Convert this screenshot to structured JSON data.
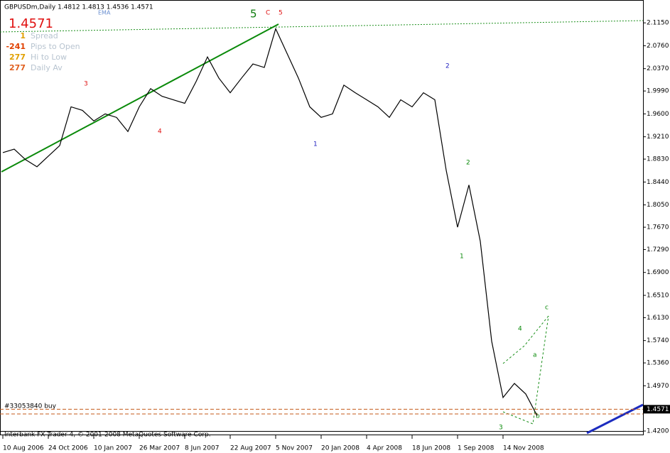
{
  "chart_data": {
    "type": "line",
    "header": "GBPUSDm,Daily  1.4812 1.4813 1.4536 1.4571",
    "indicator": "EMA",
    "current_price": 1.4571,
    "info_panel": [
      {
        "value": 1,
        "label": "Spread"
      },
      {
        "value": -241,
        "label": "Pips to Open"
      },
      {
        "value": 277,
        "label": "Hi to Low"
      },
      {
        "value": 277,
        "label": "Daily Av"
      }
    ],
    "order_label": "#33053840 buy",
    "copyright": "Interbank FX Trader 4, © 2001-2008 MetaQuotes Software Corp.",
    "annotations": [
      "5",
      "C",
      "5",
      "3",
      "4",
      "1",
      "2",
      "2",
      "1",
      "3",
      "4",
      "a",
      "b",
      "c"
    ],
    "categories": [
      "10 Aug 2006",
      null,
      null,
      null,
      "24 Oct 2006",
      null,
      null,
      null,
      "10 Jan 2007",
      null,
      null,
      null,
      "26 Mar 2007",
      null,
      null,
      null,
      "8 Jun 2007",
      null,
      null,
      null,
      "22 Aug 2007",
      null,
      null,
      null,
      "5 Nov 2007",
      null,
      null,
      null,
      "20 Jan 2008",
      null,
      null,
      null,
      "4 Apr 2008",
      null,
      null,
      null,
      "18 Jun 2008",
      null,
      null,
      null,
      "1 Sep 2008",
      null,
      null,
      null,
      "14 Nov 2008",
      null,
      null,
      null
    ],
    "series": [
      {
        "name": "GBPUSDm",
        "color": "#000000",
        "values": [
          1.894,
          1.9,
          1.882,
          1.87,
          1.888,
          1.906,
          1.972,
          1.966,
          1.948,
          1.96,
          1.954,
          1.93,
          1.972,
          2.003,
          1.99,
          1.984,
          1.978,
          2.015,
          2.057,
          2.021,
          1.996,
          2.021,
          2.045,
          2.039,
          2.105,
          2.063,
          2.021,
          1.972,
          1.954,
          1.96,
          2.009,
          1.996,
          1.984,
          1.972,
          1.954,
          1.984,
          1.972,
          1.996,
          1.984,
          1.864,
          1.767,
          1.839,
          1.743,
          1.573,
          1.477,
          1.501,
          1.483,
          1.446
        ]
      }
    ],
    "ylim": [
      1.414,
      2.137
    ],
    "yticks": [
      {
        "value": 2.115,
        "label": "2.1150"
      },
      {
        "value": 2.076,
        "label": "2.0760"
      },
      {
        "value": 2.037,
        "label": "2.0370"
      },
      {
        "value": 1.999,
        "label": "1.9990"
      },
      {
        "value": 1.96,
        "label": "1.9600"
      },
      {
        "value": 1.921,
        "label": "1.9210"
      },
      {
        "value": 1.883,
        "label": "1.8830"
      },
      {
        "value": 1.844,
        "label": "1.8440"
      },
      {
        "value": 1.805,
        "label": "1.8050"
      },
      {
        "value": 1.767,
        "label": "1.7670"
      },
      {
        "value": 1.729,
        "label": "1.7290"
      },
      {
        "value": 1.69,
        "label": "1.6900"
      },
      {
        "value": 1.651,
        "label": "1.6510"
      },
      {
        "value": 1.613,
        "label": "1.6130"
      },
      {
        "value": 1.574,
        "label": "1.5740"
      },
      {
        "value": 1.536,
        "label": "1.5360"
      },
      {
        "value": 1.497,
        "label": "1.4970"
      },
      {
        "value": 1.42,
        "label": "1.4200"
      }
    ],
    "grid": false
  }
}
